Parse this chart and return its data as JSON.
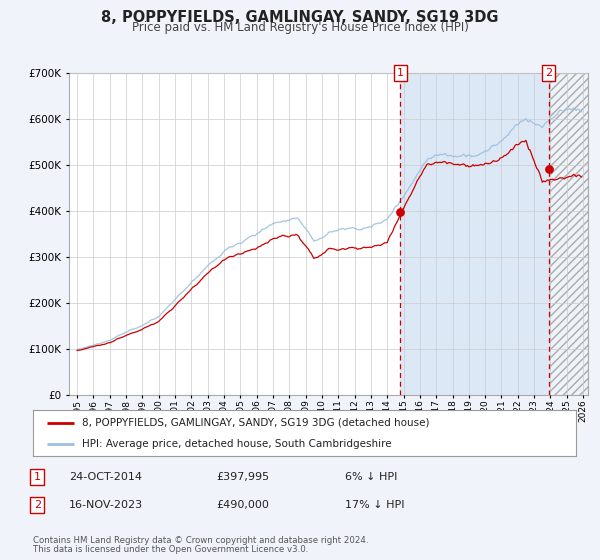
{
  "title": "8, POPPYFIELDS, GAMLINGAY, SANDY, SG19 3DG",
  "subtitle": "Price paid vs. HM Land Registry's House Price Index (HPI)",
  "legend_label_red": "8, POPPYFIELDS, GAMLINGAY, SANDY, SG19 3DG (detached house)",
  "legend_label_blue": "HPI: Average price, detached house, South Cambridgeshire",
  "sale1_date": "24-OCT-2014",
  "sale1_price": 397995,
  "sale1_hpi_pct": "6% ↓ HPI",
  "sale2_date": "16-NOV-2023",
  "sale2_price": 490000,
  "sale2_hpi_pct": "17% ↓ HPI",
  "footer_line1": "Contains HM Land Registry data © Crown copyright and database right 2024.",
  "footer_line2": "This data is licensed under the Open Government Licence v3.0.",
  "sale1_x": 2014.81,
  "sale2_x": 2023.88,
  "ylim_min": 0,
  "ylim_max": 700000,
  "xlim_min": 1994.5,
  "xlim_max": 2026.3,
  "background_color": "#f0f4fa",
  "plot_bg_color": "#ffffff",
  "shaded_bg_color": "#dce8f5",
  "red_color": "#cc0000",
  "blue_color": "#9bbfde",
  "grid_color": "#cccccc",
  "title_fontsize": 10.5,
  "subtitle_fontsize": 8.5
}
